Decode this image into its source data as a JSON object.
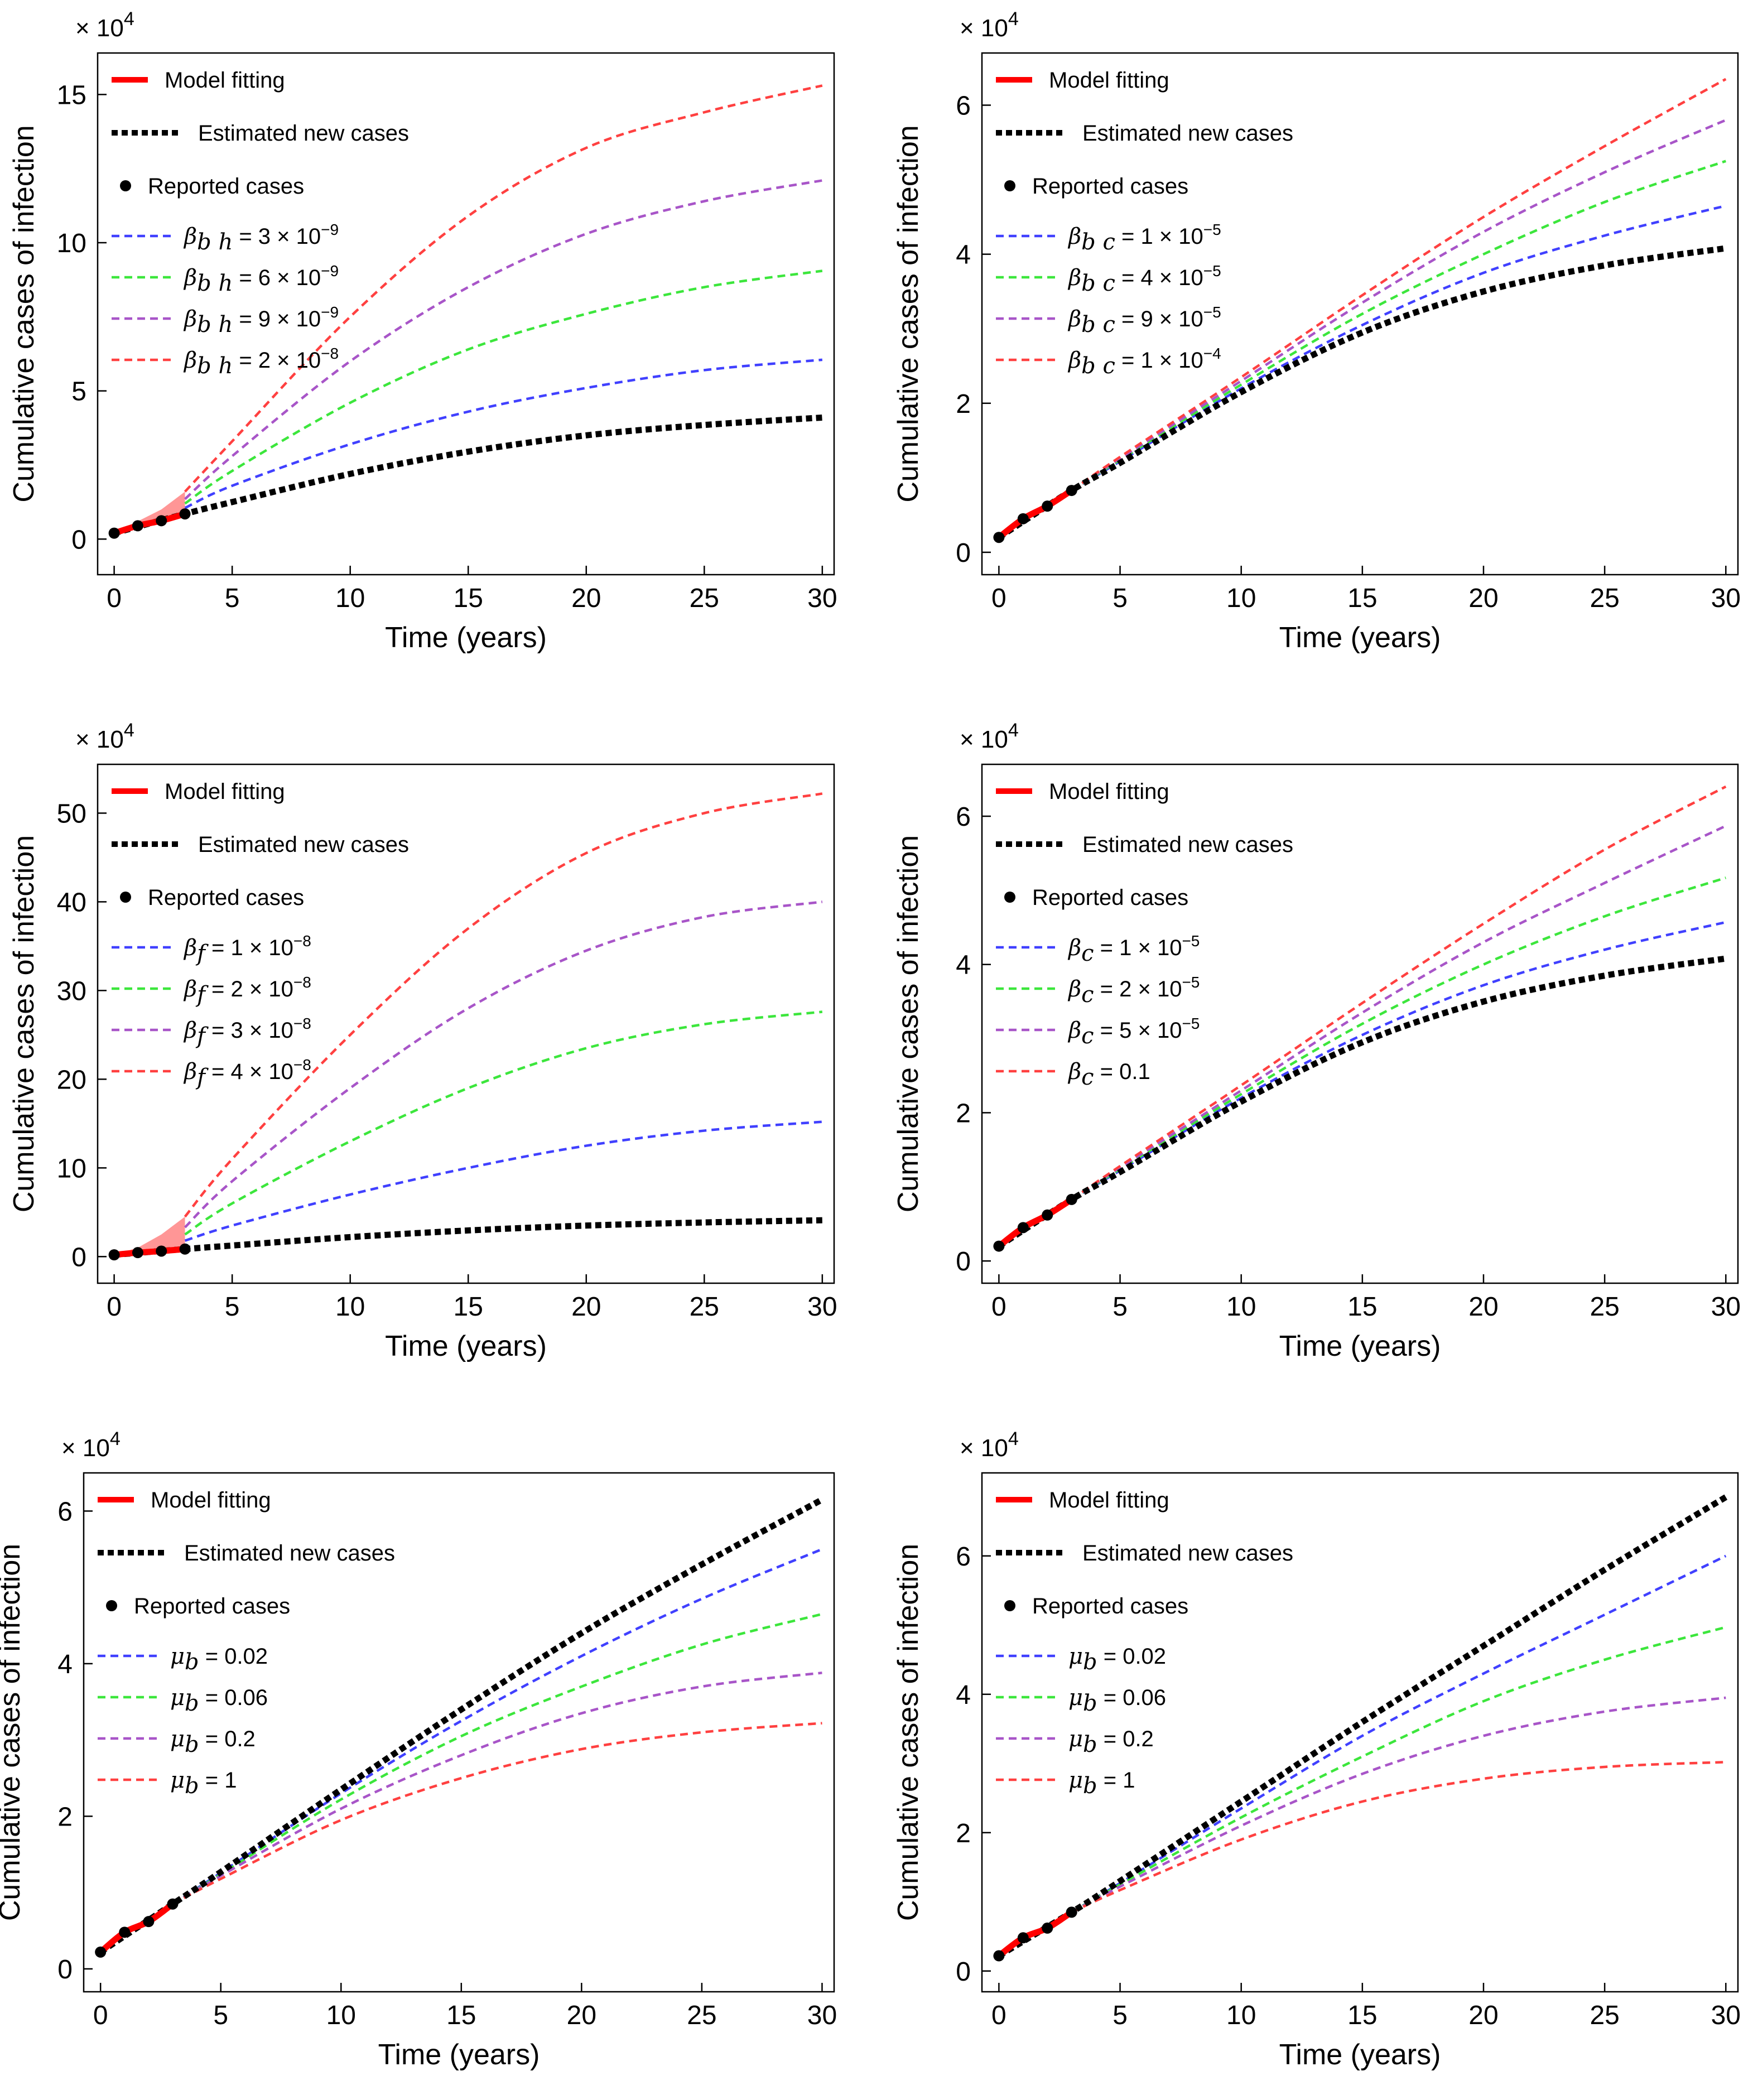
{
  "chart_data": [
    {
      "type": "line",
      "xlabel": "Time (years)",
      "ylabel": "Cumulative cases of infection",
      "multiplier": "× 10^4",
      "xlim": [
        -0.7,
        30.5
      ],
      "ylim": [
        -1.2,
        16.4
      ],
      "xticks": [
        0,
        5,
        10,
        15,
        20,
        25,
        30
      ],
      "yticks": [
        0,
        5,
        10,
        15
      ],
      "legend_location": "top-left",
      "legend": {
        "model": "Model fitting",
        "estimated": "Estimated new cases",
        "reported": "Reported cases"
      },
      "reported_cases": {
        "x": [
          0,
          1,
          2,
          3
        ],
        "y": [
          0.2,
          0.45,
          0.62,
          0.85
        ]
      },
      "model_fitting": {
        "x": [
          0,
          1,
          2,
          3
        ],
        "y": [
          0.2,
          0.45,
          0.62,
          0.85
        ]
      },
      "fan_x": [
        0,
        1,
        2,
        3
      ],
      "fan_top": [
        0.2,
        0.6,
        1.0,
        1.6
      ],
      "estimated": {
        "x": [
          0,
          3,
          5,
          10,
          15,
          20,
          25,
          30
        ],
        "y": [
          0.2,
          0.85,
          1.25,
          2.2,
          2.95,
          3.5,
          3.85,
          4.1
        ]
      },
      "series": [
        {
          "sym": "β",
          "sub": "b h",
          "rhs": "= 3 × 10",
          "exp": "−9",
          "color": "#4040ff",
          "x": [
            3,
            5,
            10,
            15,
            20,
            25,
            30
          ],
          "values": [
            1.05,
            1.8,
            3.2,
            4.3,
            5.1,
            5.7,
            6.05
          ]
        },
        {
          "sym": "β",
          "sub": "b h",
          "rhs": "= 6 × 10",
          "exp": "−9",
          "color": "#3ce63c",
          "x": [
            3,
            5,
            10,
            15,
            20,
            25,
            30
          ],
          "values": [
            1.2,
            2.3,
            4.6,
            6.4,
            7.6,
            8.5,
            9.05
          ]
        },
        {
          "sym": "β",
          "sub": "b h",
          "rhs": "= 9 × 10",
          "exp": "−9",
          "color": "#a855c8",
          "x": [
            3,
            5,
            10,
            15,
            20,
            25,
            30
          ],
          "values": [
            1.35,
            2.8,
            6.0,
            8.5,
            10.3,
            11.4,
            12.1
          ]
        },
        {
          "sym": "β",
          "sub": "b h",
          "rhs": "= 2 × 10",
          "exp": "−8",
          "color": "#ff4040",
          "x": [
            3,
            5,
            10,
            15,
            20,
            25,
            30
          ],
          "values": [
            1.6,
            3.3,
            7.5,
            10.9,
            13.2,
            14.4,
            15.3
          ]
        }
      ]
    },
    {
      "type": "line",
      "xlabel": "Time (years)",
      "ylabel": "Cumulative cases of infection",
      "multiplier": "× 10^4",
      "xlim": [
        -0.7,
        30.5
      ],
      "ylim": [
        -0.3,
        6.7
      ],
      "xticks": [
        0,
        5,
        10,
        15,
        20,
        25,
        30
      ],
      "yticks": [
        0,
        2,
        4,
        6
      ],
      "legend_location": "top-left",
      "legend": {
        "model": "Model fitting",
        "estimated": "Estimated new cases",
        "reported": "Reported cases"
      },
      "reported_cases": {
        "x": [
          0,
          1,
          2,
          3
        ],
        "y": [
          0.2,
          0.45,
          0.62,
          0.83
        ]
      },
      "model_fitting": {
        "x": [
          0,
          1,
          2,
          3
        ],
        "y": [
          0.2,
          0.45,
          0.62,
          0.83
        ]
      },
      "estimated": {
        "x": [
          0,
          3,
          5,
          10,
          15,
          20,
          25,
          30
        ],
        "y": [
          0.2,
          0.83,
          1.2,
          2.15,
          2.95,
          3.5,
          3.85,
          4.08
        ]
      },
      "series": [
        {
          "sym": "β",
          "sub": "b c",
          "rhs": "= 1 × 10",
          "exp": "−5",
          "color": "#4040ff",
          "x": [
            3,
            5,
            10,
            15,
            20,
            25,
            30
          ],
          "values": [
            0.83,
            1.22,
            2.2,
            3.05,
            3.75,
            4.25,
            4.65
          ]
        },
        {
          "sym": "β",
          "sub": "b c",
          "rhs": "= 4 × 10",
          "exp": "−5",
          "color": "#3ce63c",
          "x": [
            3,
            5,
            10,
            15,
            20,
            25,
            30
          ],
          "values": [
            0.83,
            1.24,
            2.25,
            3.2,
            4.0,
            4.7,
            5.25
          ]
        },
        {
          "sym": "β",
          "sub": "b c",
          "rhs": "= 9 × 10",
          "exp": "−5",
          "color": "#a855c8",
          "x": [
            3,
            5,
            10,
            15,
            20,
            25,
            30
          ],
          "values": [
            0.83,
            1.26,
            2.3,
            3.35,
            4.3,
            5.1,
            5.8
          ]
        },
        {
          "sym": "β",
          "sub": "b c",
          "rhs": "= 1 × 10",
          "exp": "−4",
          "color": "#ff4040",
          "x": [
            3,
            5,
            10,
            15,
            20,
            25,
            30
          ],
          "values": [
            0.83,
            1.28,
            2.35,
            3.45,
            4.5,
            5.45,
            6.35
          ]
        }
      ]
    },
    {
      "type": "line",
      "xlabel": "Time (years)",
      "ylabel": "Cumulative cases of infection",
      "multiplier": "× 10^4",
      "xlim": [
        -0.7,
        30.5
      ],
      "ylim": [
        -3.0,
        55.5
      ],
      "xticks": [
        0,
        5,
        10,
        15,
        20,
        25,
        30
      ],
      "yticks": [
        0,
        10,
        20,
        30,
        40,
        50
      ],
      "legend_location": "top-left",
      "legend": {
        "model": "Model fitting",
        "estimated": "Estimated new cases",
        "reported": "Reported cases"
      },
      "reported_cases": {
        "x": [
          0,
          1,
          2,
          3
        ],
        "y": [
          0.2,
          0.45,
          0.62,
          0.85
        ]
      },
      "model_fitting": {
        "x": [
          0,
          1,
          2,
          3
        ],
        "y": [
          0.2,
          0.45,
          0.62,
          0.85
        ]
      },
      "fan_x": [
        0,
        1,
        2,
        3
      ],
      "fan_top": [
        0.2,
        1.0,
        2.5,
        4.5
      ],
      "estimated": {
        "x": [
          0,
          3,
          5,
          10,
          15,
          20,
          25,
          30
        ],
        "y": [
          0.2,
          0.85,
          1.25,
          2.2,
          2.95,
          3.5,
          3.85,
          4.1
        ]
      },
      "series": [
        {
          "sym": "β",
          "sub": "f",
          "rhs": "= 1 × 10",
          "exp": "−8",
          "color": "#4040ff",
          "x": [
            3,
            5,
            10,
            15,
            20,
            25,
            30
          ],
          "values": [
            1.8,
            3.5,
            7.0,
            10.0,
            12.5,
            14.2,
            15.2
          ]
        },
        {
          "sym": "β",
          "sub": "f",
          "rhs": "= 2 × 10",
          "exp": "−8",
          "color": "#3ce63c",
          "x": [
            3,
            5,
            10,
            15,
            20,
            25,
            30
          ],
          "values": [
            2.5,
            6.0,
            13.0,
            19.0,
            23.5,
            26.2,
            27.6
          ]
        },
        {
          "sym": "β",
          "sub": "f",
          "rhs": "= 3 × 10",
          "exp": "−8",
          "color": "#a855c8",
          "x": [
            3,
            5,
            10,
            15,
            20,
            25,
            30
          ],
          "values": [
            3.3,
            8.5,
            19.0,
            28.0,
            34.5,
            38.3,
            40.0
          ]
        },
        {
          "sym": "β",
          "sub": "f",
          "rhs": "= 4 × 10",
          "exp": "−8",
          "color": "#ff4040",
          "x": [
            3,
            5,
            10,
            15,
            20,
            25,
            30
          ],
          "values": [
            4.5,
            11.0,
            25.0,
            37.0,
            45.5,
            50.0,
            52.2
          ]
        }
      ]
    },
    {
      "type": "line",
      "xlabel": "Time (years)",
      "ylabel": "Cumulative cases of infection",
      "multiplier": "× 10^4",
      "xlim": [
        -0.7,
        30.5
      ],
      "ylim": [
        -0.3,
        6.7
      ],
      "xticks": [
        0,
        5,
        10,
        15,
        20,
        25,
        30
      ],
      "yticks": [
        0,
        2,
        4,
        6
      ],
      "legend_location": "top-left",
      "legend": {
        "model": "Model fitting",
        "estimated": "Estimated new cases",
        "reported": "Reported cases"
      },
      "reported_cases": {
        "x": [
          0,
          1,
          2,
          3
        ],
        "y": [
          0.2,
          0.45,
          0.62,
          0.83
        ]
      },
      "model_fitting": {
        "x": [
          0,
          1,
          2,
          3
        ],
        "y": [
          0.2,
          0.45,
          0.62,
          0.83
        ]
      },
      "estimated": {
        "x": [
          0,
          3,
          5,
          10,
          15,
          20,
          25,
          30
        ],
        "y": [
          0.2,
          0.83,
          1.2,
          2.15,
          2.95,
          3.5,
          3.85,
          4.08
        ]
      },
      "series": [
        {
          "sym": "β",
          "sub": "c",
          "rhs": "= 1 × 10",
          "exp": "−5",
          "color": "#4040ff",
          "x": [
            3,
            5,
            10,
            15,
            20,
            25,
            30
          ],
          "values": [
            0.83,
            1.22,
            2.2,
            3.05,
            3.72,
            4.2,
            4.57
          ]
        },
        {
          "sym": "β",
          "sub": "c",
          "rhs": "= 2 × 10",
          "exp": "−5",
          "color": "#3ce63c",
          "x": [
            3,
            5,
            10,
            15,
            20,
            25,
            30
          ],
          "values": [
            0.83,
            1.24,
            2.25,
            3.2,
            4.0,
            4.65,
            5.17
          ]
        },
        {
          "sym": "β",
          "sub": "c",
          "rhs": "= 5 × 10",
          "exp": "−5",
          "color": "#a855c8",
          "x": [
            3,
            5,
            10,
            15,
            20,
            25,
            30
          ],
          "values": [
            0.83,
            1.26,
            2.3,
            3.35,
            4.3,
            5.1,
            5.87
          ]
        },
        {
          "sym": "β",
          "sub": "c",
          "rhs": "= 0.1",
          "exp": "",
          "color": "#ff4040",
          "x": [
            3,
            5,
            10,
            15,
            20,
            25,
            30
          ],
          "values": [
            0.83,
            1.28,
            2.37,
            3.48,
            4.55,
            5.55,
            6.4
          ]
        }
      ]
    },
    {
      "type": "line",
      "xlabel": "Time (years)",
      "ylabel": "Cumulative cases of infection",
      "multiplier": "× 10^4",
      "xlim": [
        -0.7,
        30.5
      ],
      "ylim": [
        -0.3,
        6.5
      ],
      "xticks": [
        0,
        5,
        10,
        15,
        20,
        25,
        30
      ],
      "yticks": [
        0,
        2,
        4,
        6
      ],
      "legend_location": "top-left",
      "legend": {
        "model": "Model fitting",
        "estimated": "Estimated new cases",
        "reported": "Reported cases"
      },
      "reported_cases": {
        "x": [
          0,
          1,
          2,
          3
        ],
        "y": [
          0.22,
          0.48,
          0.62,
          0.85
        ]
      },
      "model_fitting": {
        "x": [
          0,
          1,
          2,
          3
        ],
        "y": [
          0.22,
          0.48,
          0.62,
          0.85
        ]
      },
      "estimated": {
        "x": [
          0,
          3,
          5,
          10,
          15,
          20,
          25,
          30
        ],
        "y": [
          0.22,
          0.85,
          1.27,
          2.35,
          3.4,
          4.4,
          5.3,
          6.15
        ]
      },
      "series": [
        {
          "sym": "μ",
          "sub": "b",
          "rhs": "= 0.02",
          "exp": "",
          "color": "#4040ff",
          "x": [
            3,
            5,
            10,
            15,
            20,
            25,
            30
          ],
          "values": [
            0.85,
            1.26,
            2.3,
            3.25,
            4.1,
            4.85,
            5.5
          ]
        },
        {
          "sym": "μ",
          "sub": "b",
          "rhs": "= 0.06",
          "exp": "",
          "color": "#3ce63c",
          "x": [
            3,
            5,
            10,
            15,
            20,
            25,
            30
          ],
          "values": [
            0.85,
            1.24,
            2.22,
            3.05,
            3.7,
            4.25,
            4.65
          ]
        },
        {
          "sym": "μ",
          "sub": "b",
          "rhs": "= 0.2",
          "exp": "",
          "color": "#a855c8",
          "x": [
            3,
            5,
            10,
            15,
            20,
            25,
            30
          ],
          "values": [
            0.85,
            1.22,
            2.1,
            2.8,
            3.35,
            3.7,
            3.88
          ]
        },
        {
          "sym": "μ",
          "sub": "b",
          "rhs": "= 1",
          "exp": "",
          "color": "#ff4040",
          "x": [
            3,
            5,
            10,
            15,
            20,
            25,
            30
          ],
          "values": [
            0.85,
            1.18,
            1.95,
            2.5,
            2.88,
            3.1,
            3.22
          ]
        }
      ]
    },
    {
      "type": "line",
      "xlabel": "Time (years)",
      "ylabel": "Cumulative cases of infection",
      "multiplier": "× 10^4",
      "xlim": [
        -0.7,
        30.5
      ],
      "ylim": [
        -0.3,
        7.2
      ],
      "xticks": [
        0,
        5,
        10,
        15,
        20,
        25,
        30
      ],
      "yticks": [
        0,
        2,
        4,
        6
      ],
      "legend_location": "top-left",
      "legend": {
        "model": "Model fitting",
        "estimated": "Estimated new cases",
        "reported": "Reported cases"
      },
      "reported_cases": {
        "x": [
          0,
          1,
          2,
          3
        ],
        "y": [
          0.22,
          0.48,
          0.62,
          0.85
        ]
      },
      "model_fitting": {
        "x": [
          0,
          1,
          2,
          3
        ],
        "y": [
          0.22,
          0.48,
          0.62,
          0.85
        ]
      },
      "estimated": {
        "x": [
          0,
          3,
          5,
          10,
          15,
          20,
          25,
          30
        ],
        "y": [
          0.22,
          0.85,
          1.3,
          2.45,
          3.6,
          4.7,
          5.8,
          6.85
        ]
      },
      "series": [
        {
          "sym": "μ",
          "sub": "b",
          "rhs": "= 0.02",
          "exp": "",
          "color": "#4040ff",
          "x": [
            3,
            5,
            10,
            15,
            20,
            25,
            30
          ],
          "values": [
            0.85,
            1.27,
            2.35,
            3.4,
            4.3,
            5.15,
            6.0
          ]
        },
        {
          "sym": "μ",
          "sub": "b",
          "rhs": "= 0.06",
          "exp": "",
          "color": "#3ce63c",
          "x": [
            3,
            5,
            10,
            15,
            20,
            25,
            30
          ],
          "values": [
            0.85,
            1.25,
            2.22,
            3.1,
            3.9,
            4.5,
            4.97
          ]
        },
        {
          "sym": "μ",
          "sub": "b",
          "rhs": "= 0.2",
          "exp": "",
          "color": "#a855c8",
          "x": [
            3,
            5,
            10,
            15,
            20,
            25,
            30
          ],
          "values": [
            0.85,
            1.22,
            2.1,
            2.85,
            3.4,
            3.75,
            3.95
          ]
        },
        {
          "sym": "μ",
          "sub": "b",
          "rhs": "= 1",
          "exp": "",
          "color": "#ff4040",
          "x": [
            3,
            5,
            10,
            15,
            20,
            25,
            30
          ],
          "values": [
            0.85,
            1.17,
            1.9,
            2.45,
            2.78,
            2.95,
            3.02
          ]
        }
      ]
    }
  ]
}
